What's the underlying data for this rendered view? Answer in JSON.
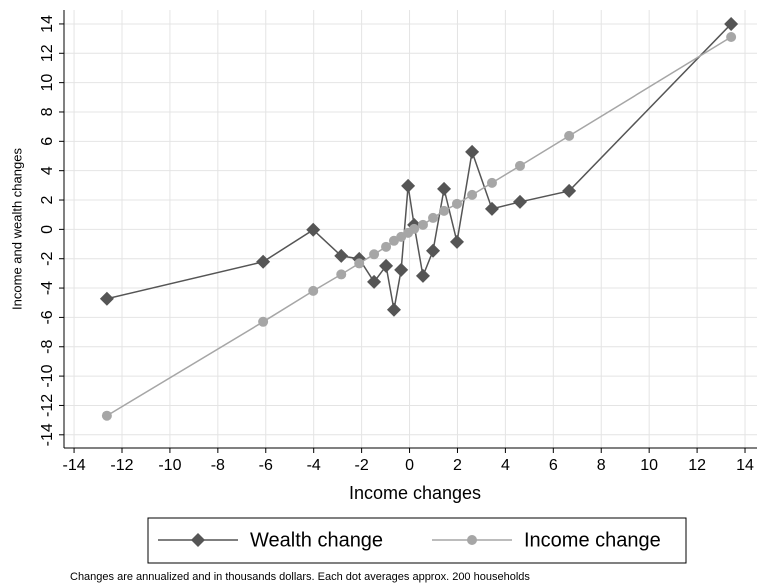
{
  "chart_data": {
    "type": "line",
    "xlabel": "Income changes",
    "ylabel": "Income and wealth changes",
    "note": "Changes are annualized and in thousands dollars. Each dot averages approx. 200 households",
    "x": [
      -12.63,
      -6.11,
      -4.02,
      -2.85,
      -2.1,
      -1.48,
      -0.98,
      -0.65,
      -0.35,
      -0.06,
      0.19,
      0.56,
      0.98,
      1.44,
      1.98,
      2.61,
      3.44,
      4.61,
      6.66,
      13.42
    ],
    "series": [
      {
        "name": "Wealth change",
        "color": "#555555",
        "marker": "diamond",
        "values": [
          -4.73,
          -2.21,
          -0.03,
          -1.81,
          -2.01,
          -3.58,
          -2.49,
          -5.48,
          -2.76,
          2.96,
          0.31,
          -3.17,
          -1.46,
          2.76,
          -0.85,
          5.28,
          1.4,
          1.87,
          2.62,
          14.0
        ]
      },
      {
        "name": "Income change",
        "color": "#a6a6a6",
        "marker": "circle",
        "values": [
          -12.7,
          -6.3,
          -4.19,
          -3.07,
          -2.32,
          -1.7,
          -1.19,
          -0.78,
          -0.51,
          -0.24,
          0.03,
          0.31,
          0.78,
          1.26,
          1.74,
          2.35,
          3.17,
          4.33,
          6.37,
          13.11
        ]
      }
    ],
    "xlim": [
      -14.42,
      14.5
    ],
    "ylim": [
      -14.9,
      14.95
    ],
    "xticks": [
      -14,
      -12,
      -10,
      -8,
      -6,
      -4,
      -2,
      0,
      2,
      4,
      6,
      8,
      10,
      12,
      14
    ],
    "yticks": [
      -14,
      -12,
      -10,
      -8,
      -6,
      -4,
      -2,
      0,
      2,
      4,
      6,
      8,
      10,
      12,
      14
    ],
    "grid": true,
    "legend": "bottom"
  }
}
